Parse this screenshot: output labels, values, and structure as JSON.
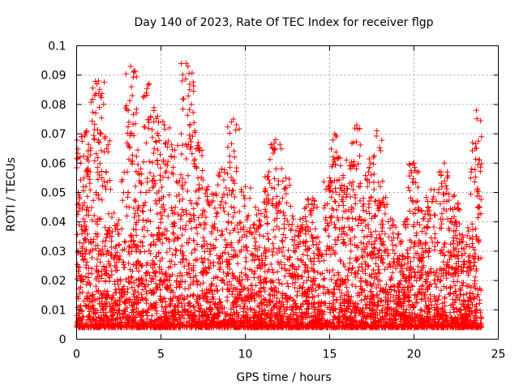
{
  "chart_data": {
    "type": "scatter",
    "title": "Day 140 of 2023, Rate Of TEC Index for receiver flgp",
    "xlabel": "GPS time / hours",
    "ylabel": "ROTI / TECUs",
    "xlim": [
      0,
      25
    ],
    "ylim": [
      0,
      0.1
    ],
    "x_ticks": [
      "0",
      "5",
      "10",
      "15",
      "20",
      "25"
    ],
    "y_ticks": [
      "0",
      "0.01",
      "0.02",
      "0.03",
      "0.04",
      "0.05",
      "0.06",
      "0.07",
      "0.08",
      "0.09",
      "0.1"
    ],
    "grid": true,
    "marker": "+",
    "color": "#ff0000",
    "series": [
      {
        "name": "ROTI",
        "x": [
          0.05,
          0.1,
          0.2,
          0.3,
          0.4,
          0.5,
          0.6,
          0.7,
          0.8,
          0.9,
          1.0,
          1.2,
          1.3,
          1.35,
          1.5,
          1.7,
          2.0,
          2.2,
          2.5,
          2.8,
          3.0,
          3.2,
          3.25,
          3.3,
          3.5,
          3.8,
          4.0,
          4.3,
          4.6,
          4.8,
          5.0,
          5.2,
          5.5,
          5.8,
          6.0,
          6.2,
          6.5,
          6.6,
          6.7,
          6.8,
          7.0,
          7.2,
          7.5,
          7.8,
          8.0,
          8.3,
          8.6,
          9.0,
          9.3,
          9.6,
          10.0,
          10.3,
          10.6,
          11.0,
          11.4,
          11.8,
          12.0,
          12.4,
          12.8,
          13.2,
          13.6,
          14.0,
          14.4,
          14.8,
          15.0,
          15.3,
          15.5,
          15.8,
          16.0,
          16.3,
          16.6,
          17.0,
          17.3,
          17.6,
          17.8,
          18.0,
          18.4,
          18.8,
          19.2,
          19.6,
          20.0,
          20.3,
          20.6,
          21.0,
          21.4,
          21.8,
          22.0,
          22.4,
          22.8,
          23.2,
          23.5,
          23.7,
          23.9,
          24.0
        ],
        "y": [
          0.006,
          0.05,
          0.062,
          0.069,
          0.041,
          0.03,
          0.071,
          0.021,
          0.057,
          0.013,
          0.034,
          0.087,
          0.088,
          0.079,
          0.055,
          0.069,
          0.025,
          0.043,
          0.032,
          0.018,
          0.057,
          0.093,
          0.086,
          0.083,
          0.047,
          0.058,
          0.035,
          0.087,
          0.065,
          0.076,
          0.041,
          0.073,
          0.072,
          0.062,
          0.066,
          0.07,
          0.094,
          0.093,
          0.085,
          0.08,
          0.071,
          0.065,
          0.044,
          0.052,
          0.036,
          0.049,
          0.058,
          0.029,
          0.075,
          0.033,
          0.052,
          0.038,
          0.045,
          0.026,
          0.057,
          0.068,
          0.031,
          0.055,
          0.042,
          0.037,
          0.045,
          0.048,
          0.033,
          0.029,
          0.055,
          0.07,
          0.062,
          0.034,
          0.061,
          0.045,
          0.073,
          0.048,
          0.057,
          0.062,
          0.071,
          0.052,
          0.046,
          0.039,
          0.033,
          0.041,
          0.06,
          0.044,
          0.038,
          0.051,
          0.033,
          0.06,
          0.041,
          0.049,
          0.034,
          0.038,
          0.028,
          0.078,
          0.045,
          0.069
        ]
      }
    ]
  }
}
